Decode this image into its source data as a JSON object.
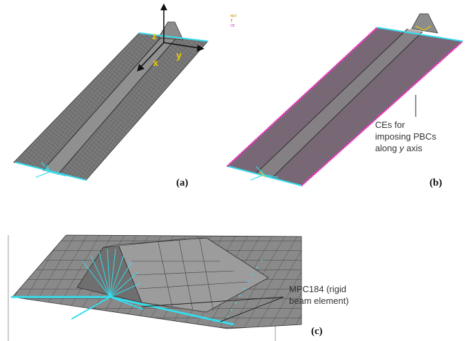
{
  "panels": {
    "a": {
      "label": "(a)"
    },
    "b": {
      "label": "(b)"
    },
    "c": {
      "label": "(c)"
    }
  },
  "axes": {
    "z": "z",
    "y": "y",
    "x": "x"
  },
  "legend": {
    "items": [
      {
        "text": "MAT",
        "color": "#c8a000"
      },
      {
        "text": "T",
        "color": "#d02020"
      },
      {
        "text": "CE",
        "color": "#c020c0"
      }
    ]
  },
  "annotations": {
    "ce_lines": [
      "CEs for",
      "imposing PBCs",
      "along y axis"
    ],
    "mpc_lines": [
      "MPC184 (rigid",
      "beam element)"
    ]
  },
  "colors": {
    "mesh_fill": "#7a7a7a",
    "mesh_line": "#404040",
    "ce_magenta": "#ff33cc",
    "beam_cyan": "#33ddee",
    "axis_yellow": "#f2d000"
  }
}
